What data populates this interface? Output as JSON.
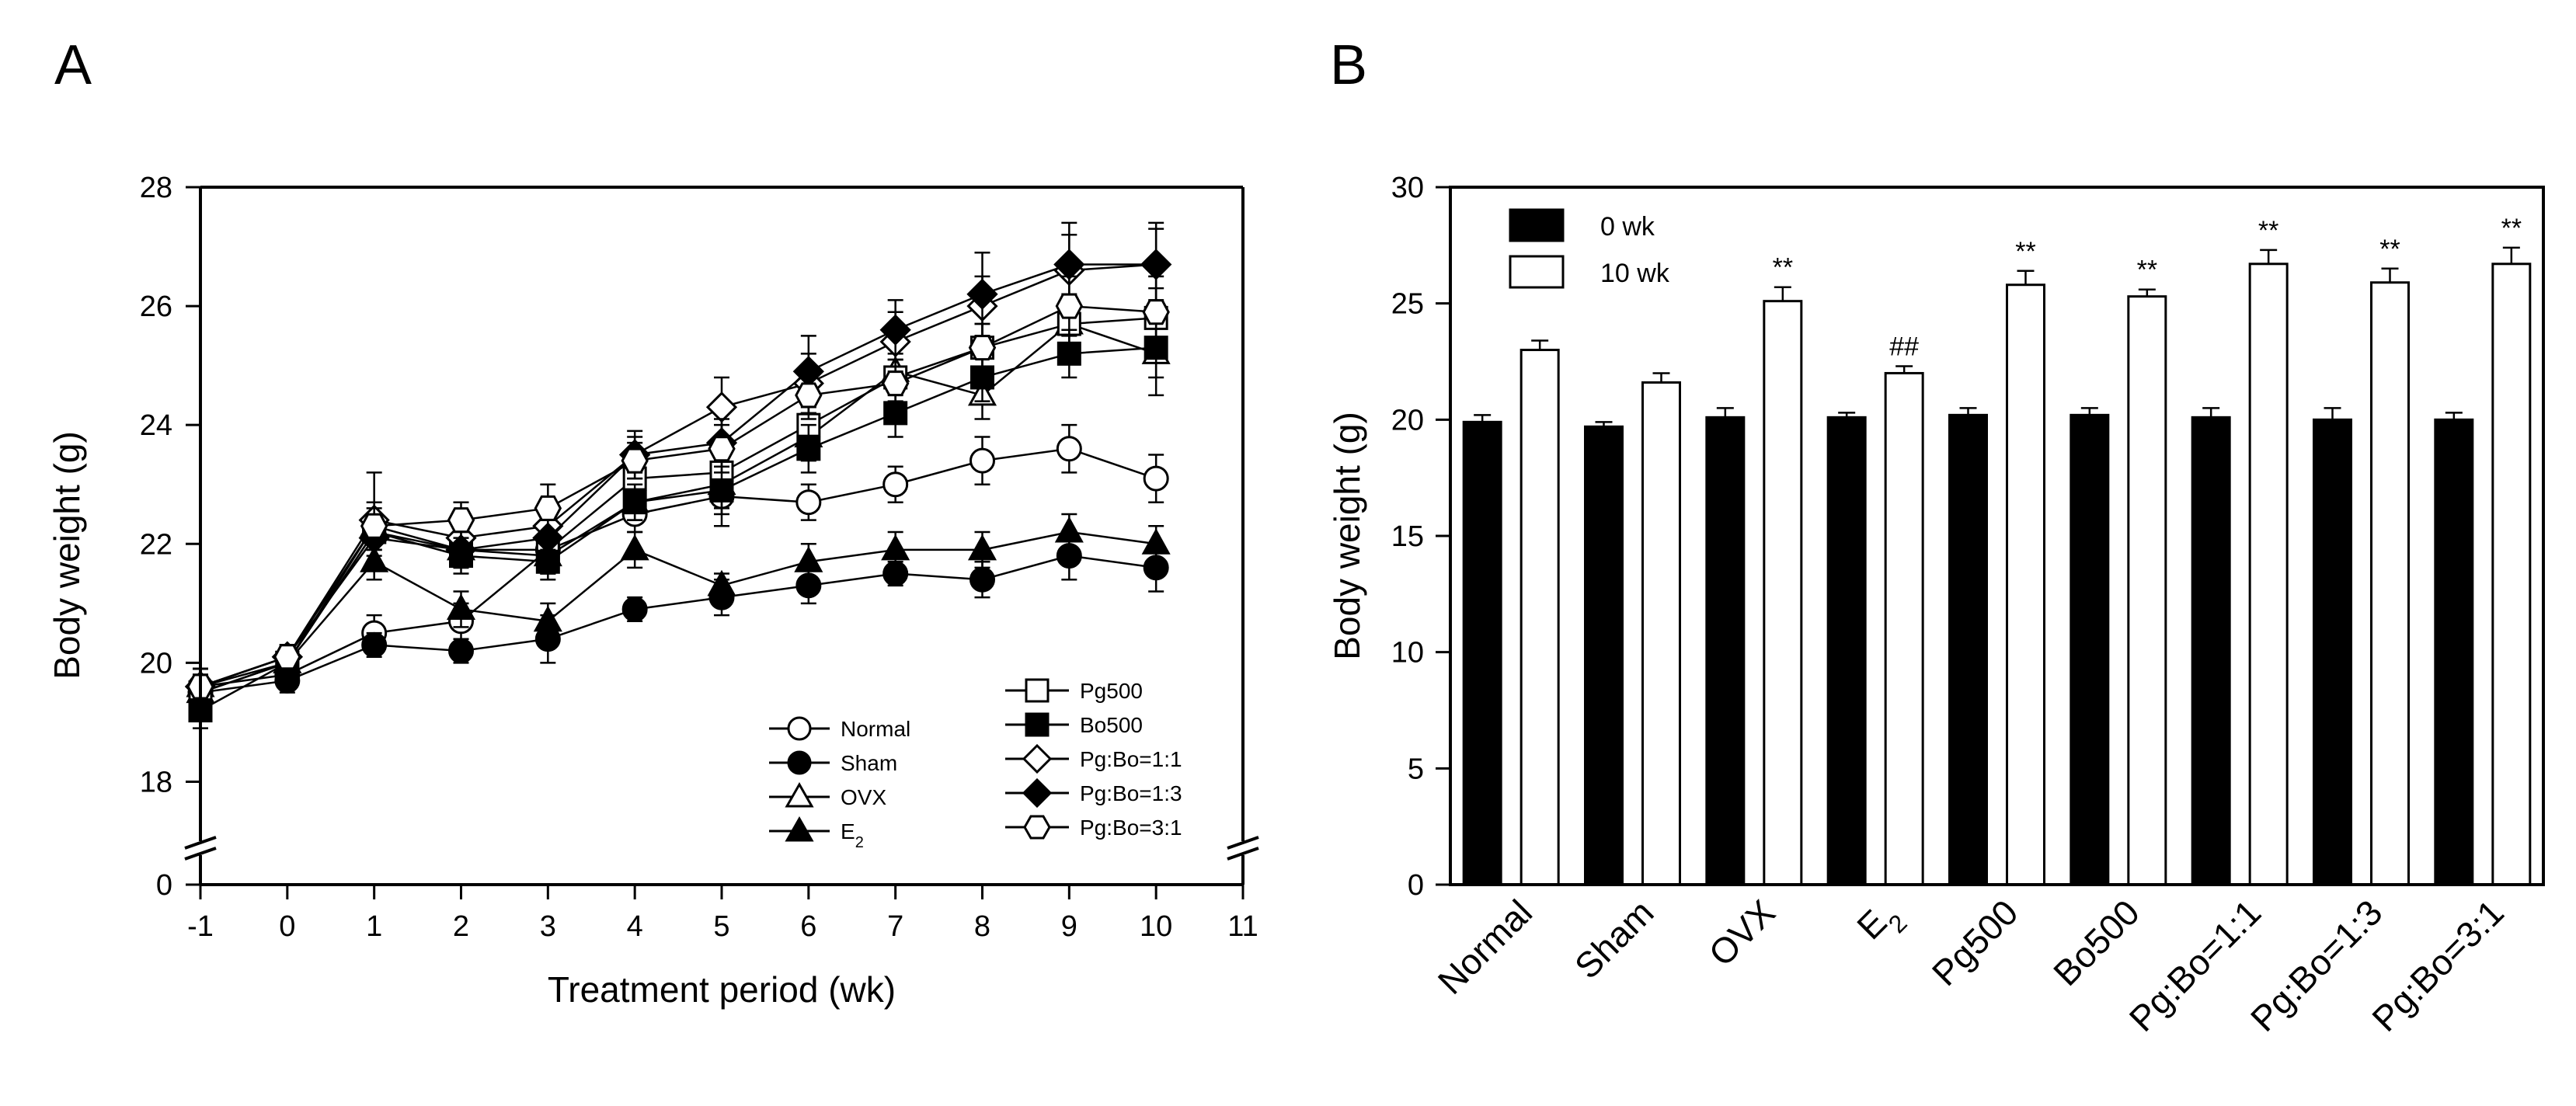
{
  "chart_data": [
    {
      "panel": "A",
      "type": "line",
      "xlabel": "Treatment period (wk)",
      "ylabel": "Body weight (g)",
      "xlim": [
        -1,
        11
      ],
      "x_ticks": [
        "-1",
        "0",
        "1",
        "2",
        "3",
        "4",
        "5",
        "6",
        "7",
        "8",
        "9",
        "10",
        "11"
      ],
      "y_ticks": [
        "0",
        "18",
        "20",
        "22",
        "24",
        "26",
        "28"
      ],
      "ylim_upper_segment": [
        17,
        28
      ],
      "y_axis_break": "between 0 and 17",
      "x": [
        -1,
        0,
        1,
        2,
        3,
        4,
        5,
        6,
        7,
        8,
        9,
        10
      ],
      "legend": {
        "left_column": [
          "Normal",
          "Sham",
          "OVX",
          "E2"
        ],
        "right_column": [
          "Pg500",
          "Bo500",
          "Pg:Bo=1:1",
          "Pg:Bo=1:3",
          "Pg:Bo=3:1"
        ],
        "placement": "bottom-right"
      },
      "series": [
        {
          "name": "Normal",
          "marker": "circle-open",
          "values": [
            19.6,
            19.8,
            20.5,
            20.7,
            21.9,
            22.5,
            22.8,
            22.7,
            23.0,
            23.4,
            23.6,
            23.1
          ],
          "errors": [
            0.3,
            0.2,
            0.3,
            0.3,
            0.4,
            0.3,
            0.5,
            0.3,
            0.3,
            0.4,
            0.4,
            0.4
          ]
        },
        {
          "name": "Sham",
          "marker": "circle-filled",
          "values": [
            19.5,
            19.7,
            20.3,
            20.2,
            20.4,
            20.9,
            21.1,
            21.3,
            21.5,
            21.4,
            21.8,
            21.6
          ],
          "errors": [
            0.3,
            0.2,
            0.2,
            0.2,
            0.4,
            0.2,
            0.3,
            0.3,
            0.2,
            0.3,
            0.4,
            0.4
          ]
        },
        {
          "name": "OVX",
          "marker": "triangle-open",
          "values": [
            19.6,
            20.0,
            22.3,
            21.9,
            21.8,
            22.7,
            23.0,
            23.8,
            24.9,
            24.5,
            25.7,
            25.2
          ],
          "errors": [
            0.3,
            0.2,
            0.4,
            0.3,
            0.3,
            0.3,
            0.4,
            0.4,
            0.4,
            0.4,
            0.5,
            0.7
          ]
        },
        {
          "name": "E2",
          "marker": "triangle-filled",
          "values": [
            19.5,
            20.0,
            21.7,
            20.9,
            20.7,
            21.9,
            21.3,
            21.7,
            21.9,
            21.9,
            22.2,
            22.0
          ],
          "errors": [
            0.3,
            0.2,
            0.3,
            0.3,
            0.3,
            0.3,
            0.2,
            0.3,
            0.3,
            0.3,
            0.3,
            0.3
          ]
        },
        {
          "name": "Pg500",
          "marker": "square-open",
          "values": [
            19.5,
            20.0,
            22.2,
            21.9,
            21.9,
            23.1,
            23.2,
            24.0,
            24.8,
            25.3,
            25.7,
            25.8
          ],
          "errors": [
            0.3,
            0.2,
            0.3,
            0.3,
            0.3,
            0.3,
            0.4,
            0.4,
            0.4,
            0.4,
            0.4,
            0.5
          ]
        },
        {
          "name": "Bo500",
          "marker": "square-filled",
          "values": [
            19.2,
            20.0,
            22.2,
            21.8,
            21.7,
            22.7,
            22.9,
            23.6,
            24.2,
            24.8,
            25.2,
            25.3
          ],
          "errors": [
            0.3,
            0.2,
            0.3,
            0.3,
            0.3,
            0.3,
            0.4,
            0.4,
            0.4,
            0.4,
            0.4,
            0.5
          ]
        },
        {
          "name": "Pg:Bo=1:1",
          "marker": "diamond-open",
          "values": [
            19.6,
            20.1,
            22.4,
            22.1,
            22.3,
            23.5,
            24.3,
            24.7,
            25.4,
            26.0,
            26.6,
            26.7
          ],
          "errors": [
            0.3,
            0.2,
            0.8,
            0.4,
            0.4,
            0.4,
            0.5,
            0.5,
            0.5,
            0.5,
            0.6,
            0.7
          ]
        },
        {
          "name": "Pg:Bo=1:3",
          "marker": "diamond-filled",
          "values": [
            19.6,
            20.1,
            22.1,
            21.9,
            22.1,
            23.5,
            23.7,
            24.9,
            25.6,
            26.2,
            26.7,
            26.7
          ],
          "errors": [
            0.3,
            0.2,
            0.3,
            0.3,
            0.3,
            0.3,
            0.4,
            0.6,
            0.5,
            0.7,
            0.7,
            0.6
          ]
        },
        {
          "name": "Pg:Bo=3:1",
          "marker": "hexagon-open",
          "values": [
            19.6,
            20.1,
            22.3,
            22.4,
            22.6,
            23.4,
            23.6,
            24.5,
            24.7,
            25.3,
            26.0,
            25.9
          ],
          "errors": [
            0.3,
            0.2,
            0.3,
            0.3,
            0.4,
            0.3,
            0.4,
            0.4,
            0.4,
            0.4,
            0.5,
            0.6
          ]
        }
      ]
    },
    {
      "panel": "B",
      "type": "bar",
      "ylabel": "Body weight (g)",
      "ylim": [
        0,
        30
      ],
      "y_ticks": [
        "0",
        "5",
        "10",
        "15",
        "20",
        "25",
        "30"
      ],
      "categories": [
        "Normal",
        "Sham",
        "OVX",
        "E2",
        "Pg500",
        "Bo500",
        "Pg:Bo=1:1",
        "Pg:Bo=1:3",
        "Pg:Bo=3:1"
      ],
      "legend": {
        "entries": [
          "0 wk",
          "10 wk"
        ],
        "placement": "top-left"
      },
      "series": [
        {
          "name": "0 wk",
          "color": "#000000",
          "values": [
            19.9,
            19.7,
            20.1,
            20.1,
            20.2,
            20.2,
            20.1,
            20.0,
            20.0
          ],
          "errors": [
            0.3,
            0.2,
            0.4,
            0.2,
            0.3,
            0.3,
            0.4,
            0.5,
            0.3
          ]
        },
        {
          "name": "10 wk",
          "color": "#ffffff",
          "values": [
            23.0,
            21.6,
            25.1,
            22.0,
            25.8,
            25.3,
            26.7,
            25.9,
            26.7
          ],
          "errors": [
            0.4,
            0.4,
            0.6,
            0.3,
            0.6,
            0.3,
            0.6,
            0.6,
            0.7
          ]
        }
      ],
      "annotations": [
        "",
        "",
        "**",
        "##",
        "**",
        "**",
        "**",
        "**",
        "**"
      ]
    }
  ]
}
